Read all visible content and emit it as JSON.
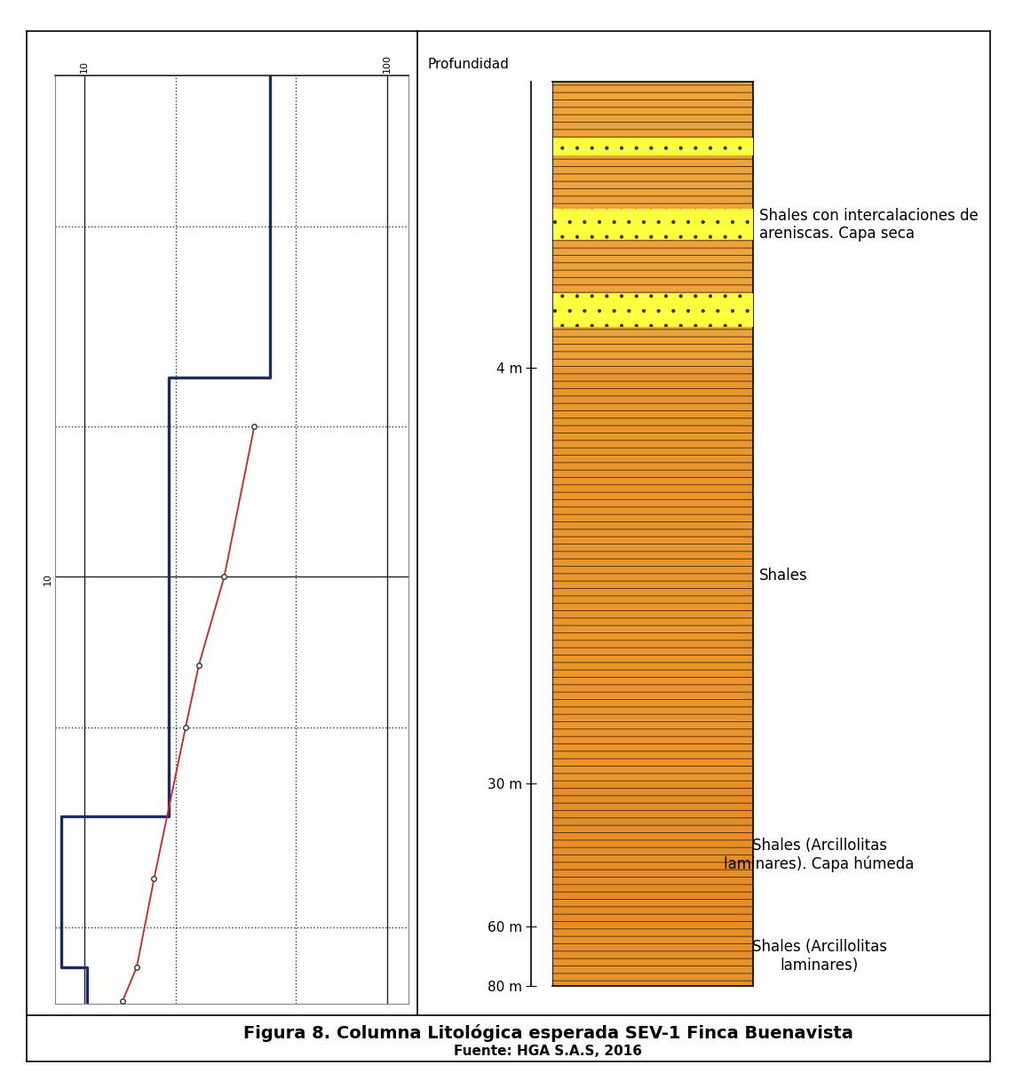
{
  "chart_data": [
    {
      "type": "line",
      "log": true,
      "grid": true,
      "xlim": [
        8,
        118
      ],
      "xticks": [
        10,
        100
      ],
      "ylim": [
        1,
        71
      ],
      "yticks": [
        10
      ],
      "dotted_gridlines": {
        "x": [
          20,
          50
        ],
        "y": [
          2,
          5,
          20,
          50
        ]
      },
      "series": [
        {
          "type": "line",
          "color": "#d62020",
          "marker": "o",
          "x": [
            36.5,
            29,
            23.9,
            21.6,
            17,
            14.9,
            13.4
          ],
          "values": [
            5,
            10,
            15,
            20,
            40,
            60,
            70
          ]
        },
        {
          "type": "step",
          "color": "#1b2a6b",
          "resistivities": [
            41,
            19,
            8.4,
            10.2
          ],
          "depths": [
            4,
            30,
            60
          ]
        }
      ]
    },
    {
      "type": "lithologic_column",
      "axis_title": "Profundidad",
      "log": "y",
      "ylim": [
        1,
        80
      ],
      "yticks": [
        {
          "value": 4,
          "label": "4 m"
        },
        {
          "value": 30,
          "label": "30 m"
        },
        {
          "value": 60,
          "label": "60 m"
        },
        {
          "value": 80,
          "label": "80 m"
        }
      ],
      "color": "#e8952a",
      "layers": [
        {
          "top": 1,
          "bottom": 4,
          "description": "Shales con intercalaciones de\nareniscas. Capa seca"
        },
        {
          "top": 4,
          "bottom": 30,
          "description": "Shales"
        },
        {
          "top": 30,
          "bottom": 60,
          "description": "Shales (Arcillolitas\nlaminares). Capa húmeda"
        },
        {
          "top": 60,
          "bottom": 80,
          "description": "Shales (Arcillolitas\nlaminares)"
        }
      ],
      "sandstone_bands": [
        [
          1.31,
          1.43
        ],
        [
          1.85,
          2.15
        ],
        [
          2.79,
          3.28
        ]
      ]
    }
  ],
  "caption": "Figura 8. Columna Litológica esperada SEV-1 Finca Buenavista",
  "source": "Fuente: HGA S.A.S, 2016"
}
